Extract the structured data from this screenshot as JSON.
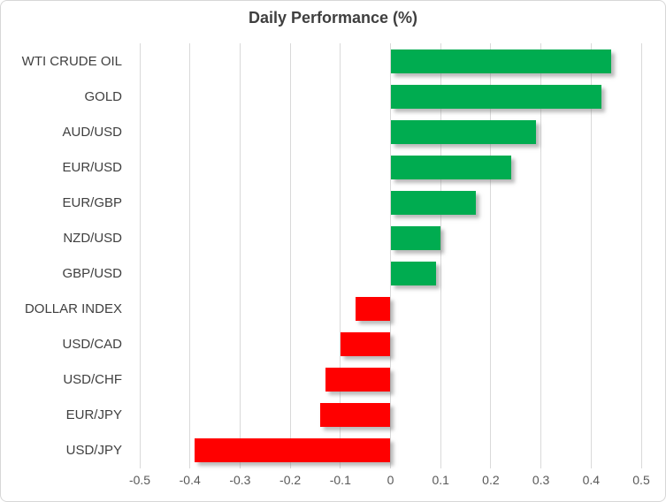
{
  "chart_data": {
    "type": "bar",
    "orientation": "horizontal",
    "title": "Daily Performance (%)",
    "categories": [
      "WTI CRUDE OIL",
      "GOLD",
      "AUD/USD",
      "EUR/USD",
      "EUR/GBP",
      "NZD/USD",
      "GBP/USD",
      "DOLLAR INDEX",
      "USD/CAD",
      "USD/CHF",
      "EUR/JPY",
      "USD/JPY"
    ],
    "values": [
      0.44,
      0.42,
      0.29,
      0.24,
      0.17,
      0.1,
      0.09,
      -0.07,
      -0.1,
      -0.13,
      -0.14,
      -0.39
    ],
    "xlabel": "",
    "ylabel": "",
    "xlim": [
      -0.5,
      0.5
    ],
    "x_ticks": [
      -0.5,
      -0.4,
      -0.3,
      -0.2,
      -0.1,
      0,
      0.1,
      0.2,
      0.3,
      0.4,
      0.5
    ],
    "x_tick_labels": [
      "-0.5",
      "-0.4",
      "-0.3",
      "-0.2",
      "-0.1",
      "0",
      "0.1",
      "0.2",
      "0.3",
      "0.4",
      "0.5"
    ],
    "grid": true,
    "legend": false,
    "colors": {
      "positive": "#00AC50",
      "negative": "#FF0000",
      "gridline": "#D9D9D9",
      "title_text": "#3F3F3F",
      "category_text": "#3F3F3F",
      "tick_text": "#595959"
    }
  }
}
